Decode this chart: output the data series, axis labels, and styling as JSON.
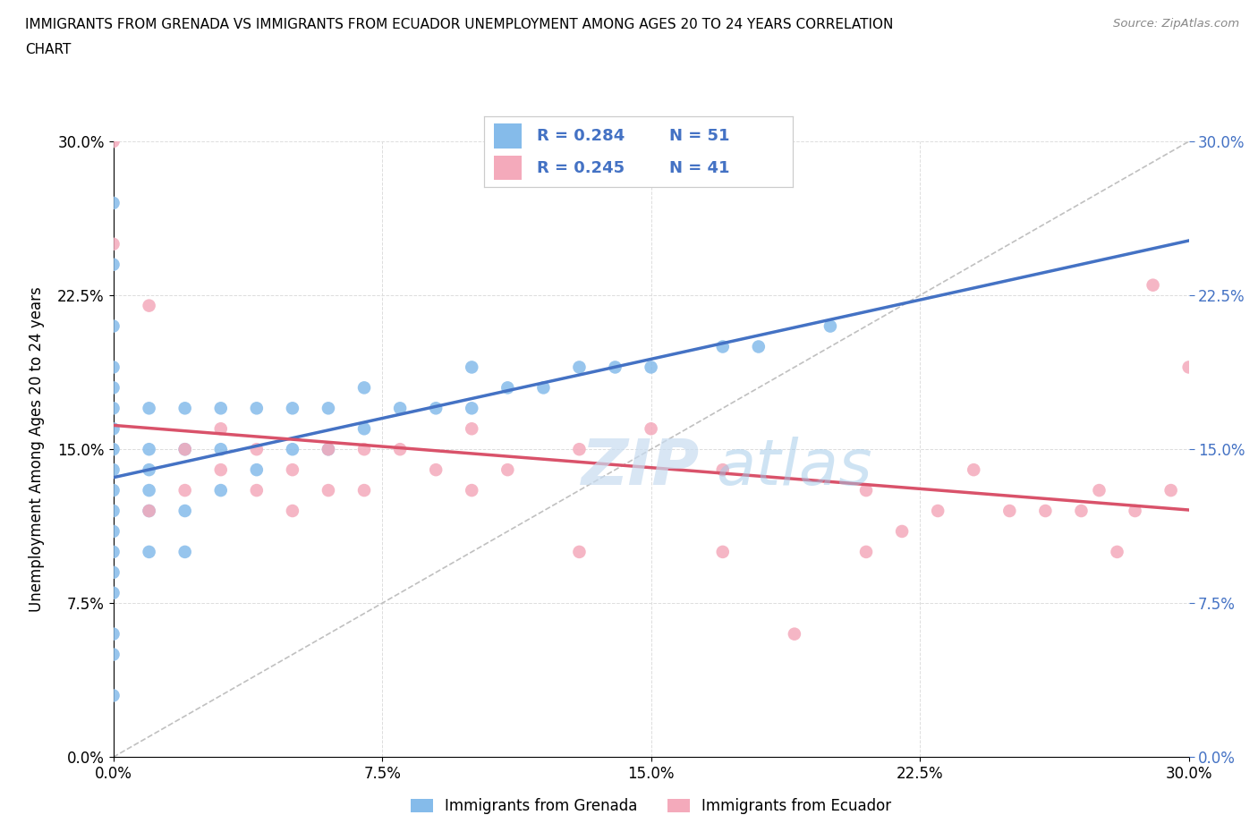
{
  "title_line1": "IMMIGRANTS FROM GRENADA VS IMMIGRANTS FROM ECUADOR UNEMPLOYMENT AMONG AGES 20 TO 24 YEARS CORRELATION",
  "title_line2": "CHART",
  "source": "Source: ZipAtlas.com",
  "ylabel": "Unemployment Among Ages 20 to 24 years",
  "legend_label1": "Immigrants from Grenada",
  "legend_label2": "Immigrants from Ecuador",
  "R1": 0.284,
  "N1": 51,
  "R2": 0.245,
  "N2": 41,
  "color1": "#85BBEA",
  "color2": "#F4AABB",
  "trendline1_color": "#4472C4",
  "trendline2_color": "#D9526A",
  "watermark_top": "ZIP",
  "watermark_bot": "atlas",
  "xmin": 0.0,
  "xmax": 0.3,
  "ymin": 0.0,
  "ymax": 0.3,
  "xticks": [
    0.0,
    0.075,
    0.15,
    0.225,
    0.3
  ],
  "yticks": [
    0.0,
    0.075,
    0.15,
    0.225,
    0.3
  ],
  "tick_labels": [
    "0.0%",
    "7.5%",
    "15.0%",
    "22.5%",
    "30.0%"
  ],
  "grenada_x": [
    0.0,
    0.0,
    0.0,
    0.0,
    0.0,
    0.0,
    0.0,
    0.0,
    0.0,
    0.0,
    0.0,
    0.0,
    0.0,
    0.0,
    0.0,
    0.0,
    0.0,
    0.0,
    0.01,
    0.01,
    0.01,
    0.01,
    0.01,
    0.01,
    0.02,
    0.02,
    0.02,
    0.02,
    0.03,
    0.03,
    0.03,
    0.04,
    0.04,
    0.05,
    0.05,
    0.06,
    0.06,
    0.07,
    0.07,
    0.08,
    0.09,
    0.1,
    0.1,
    0.11,
    0.12,
    0.13,
    0.14,
    0.15,
    0.17,
    0.18,
    0.2
  ],
  "grenada_y": [
    0.03,
    0.05,
    0.06,
    0.08,
    0.09,
    0.1,
    0.11,
    0.12,
    0.13,
    0.14,
    0.15,
    0.16,
    0.17,
    0.18,
    0.19,
    0.21,
    0.24,
    0.27,
    0.1,
    0.12,
    0.13,
    0.14,
    0.15,
    0.17,
    0.1,
    0.12,
    0.15,
    0.17,
    0.13,
    0.15,
    0.17,
    0.14,
    0.17,
    0.15,
    0.17,
    0.15,
    0.17,
    0.16,
    0.18,
    0.17,
    0.17,
    0.17,
    0.19,
    0.18,
    0.18,
    0.19,
    0.19,
    0.19,
    0.2,
    0.2,
    0.21
  ],
  "ecuador_x": [
    0.0,
    0.0,
    0.01,
    0.01,
    0.02,
    0.02,
    0.03,
    0.03,
    0.04,
    0.04,
    0.05,
    0.05,
    0.06,
    0.06,
    0.07,
    0.07,
    0.08,
    0.09,
    0.1,
    0.1,
    0.11,
    0.13,
    0.13,
    0.15,
    0.17,
    0.17,
    0.19,
    0.21,
    0.21,
    0.22,
    0.23,
    0.24,
    0.25,
    0.26,
    0.27,
    0.275,
    0.28,
    0.285,
    0.29,
    0.295,
    0.3
  ],
  "ecuador_y": [
    0.3,
    0.25,
    0.22,
    0.12,
    0.15,
    0.13,
    0.16,
    0.14,
    0.13,
    0.15,
    0.14,
    0.12,
    0.15,
    0.13,
    0.15,
    0.13,
    0.15,
    0.14,
    0.16,
    0.13,
    0.14,
    0.15,
    0.1,
    0.16,
    0.1,
    0.14,
    0.06,
    0.1,
    0.13,
    0.11,
    0.12,
    0.14,
    0.12,
    0.12,
    0.12,
    0.13,
    0.1,
    0.12,
    0.23,
    0.13,
    0.19
  ]
}
